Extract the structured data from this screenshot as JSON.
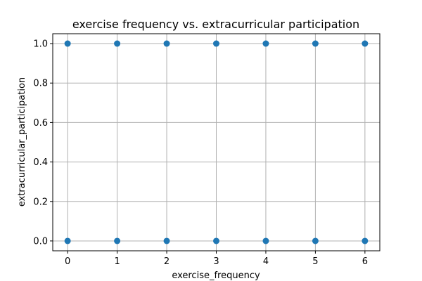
{
  "chart_data": {
    "type": "scatter",
    "title": "exercise frequency vs. extracurricular participation",
    "xlabel": "exercise_frequency",
    "ylabel": "extracurricular_participation",
    "xlim": [
      -0.3,
      6.3
    ],
    "ylim": [
      -0.05,
      1.05
    ],
    "xticks": [
      0,
      1,
      2,
      3,
      4,
      5,
      6
    ],
    "yticks": [
      0.0,
      0.2,
      0.4,
      0.6,
      0.8,
      1.0
    ],
    "xtick_labels": [
      "0",
      "1",
      "2",
      "3",
      "4",
      "5",
      "6"
    ],
    "ytick_labels": [
      "0.0",
      "0.2",
      "0.4",
      "0.6",
      "0.8",
      "1.0"
    ],
    "grid": true,
    "point_color": "#1f77b4",
    "grid_color": "#b0b0b0",
    "points": [
      {
        "x": 0,
        "y": 0
      },
      {
        "x": 1,
        "y": 0
      },
      {
        "x": 2,
        "y": 0
      },
      {
        "x": 3,
        "y": 0
      },
      {
        "x": 4,
        "y": 0
      },
      {
        "x": 5,
        "y": 0
      },
      {
        "x": 6,
        "y": 0
      },
      {
        "x": 0,
        "y": 1
      },
      {
        "x": 1,
        "y": 1
      },
      {
        "x": 2,
        "y": 1
      },
      {
        "x": 3,
        "y": 1
      },
      {
        "x": 4,
        "y": 1
      },
      {
        "x": 5,
        "y": 1
      },
      {
        "x": 6,
        "y": 1
      }
    ]
  }
}
